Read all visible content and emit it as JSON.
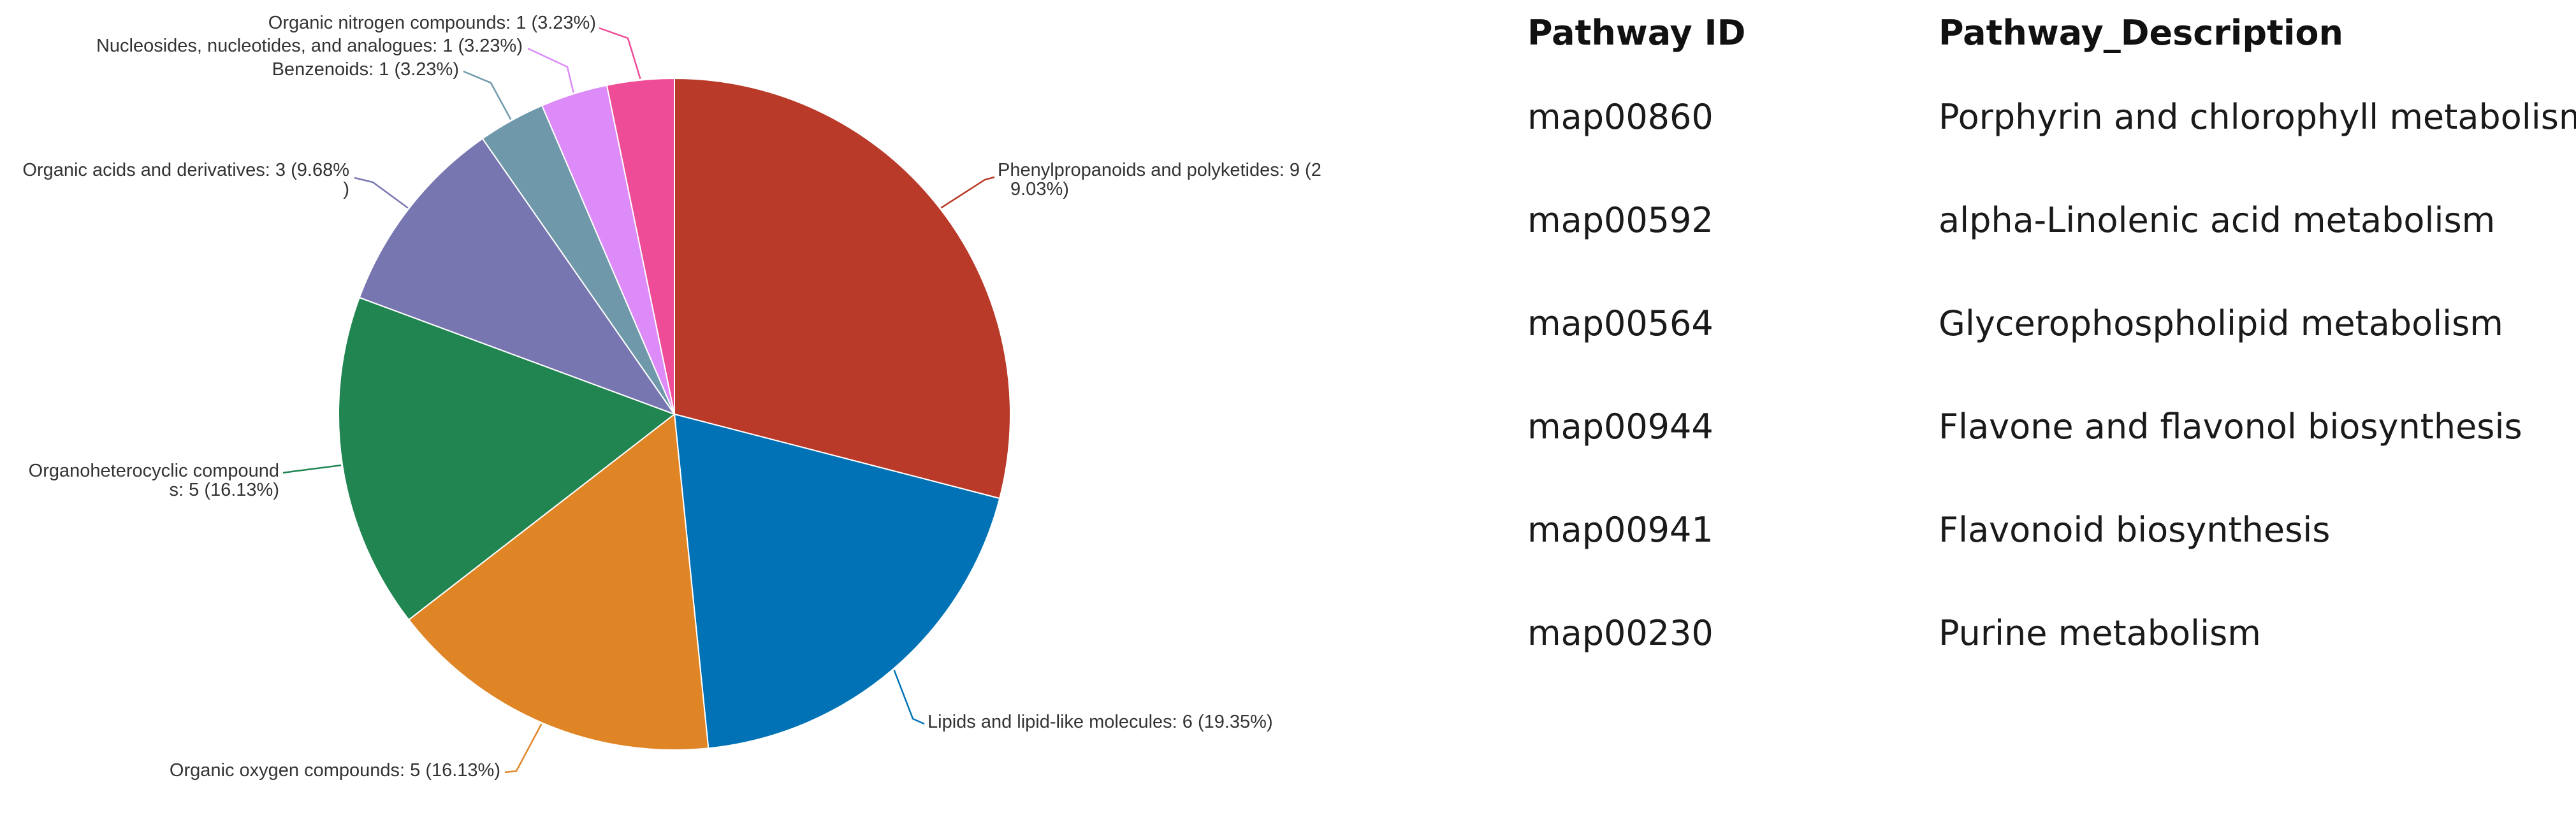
{
  "chart_data": {
    "type": "pie",
    "slices": [
      {
        "name": "Phenylpropanoids and polyketides",
        "value": 9,
        "label_lines": [
          "Phenylpropanoids and polyketides: 9 (2",
          "9.03%)"
        ],
        "color": "#b93a28"
      },
      {
        "name": "Lipids and lipid-like molecules",
        "value": 6,
        "label_lines": [
          "Lipids and lipid-like molecules: 6 (19.35%)"
        ],
        "color": "#0072b5"
      },
      {
        "name": "Organic oxygen compounds",
        "value": 5,
        "label_lines": [
          "Organic oxygen compounds: 5 (16.13%)"
        ],
        "color": "#e08526"
      },
      {
        "name": "Organoheterocyclic compounds",
        "value": 5,
        "label_lines": [
          "Organoheterocyclic compound",
          "s: 5 (16.13%)"
        ],
        "color": "#208550"
      },
      {
        "name": "Organic acids and derivatives",
        "value": 3,
        "label_lines": [
          "Organic acids and derivatives: 3 (9.68%",
          ")"
        ],
        "color": "#7876b1"
      },
      {
        "name": "Benzenoids",
        "value": 1,
        "label_lines": [
          "Benzenoids: 1 (3.23%)"
        ],
        "color": "#6f99ab"
      },
      {
        "name": "Nucleosides, nucleotides, and analogues",
        "value": 1,
        "label_lines": [
          "Nucleosides, nucleotides, and analogues: 1 (3.23%)"
        ],
        "color": "#dc8bf8"
      },
      {
        "name": "Organic nitrogen compounds",
        "value": 1,
        "label_lines": [
          "Organic nitrogen compounds: 1 (3.23%)"
        ],
        "color": "#ee4c97"
      }
    ],
    "start": "12 o'clock",
    "direction": "clockwise",
    "legend": "none",
    "title": ""
  },
  "table": {
    "headers": {
      "id": "Pathway ID",
      "description": "Pathway_Description"
    },
    "rows": [
      {
        "id": "map00860",
        "description": "Porphyrin and chlorophyll metabolism"
      },
      {
        "id": "map00592",
        "description": "alpha-Linolenic acid metabolism"
      },
      {
        "id": "map00564",
        "description": "Glycerophospholipid metabolism"
      },
      {
        "id": "map00944",
        "description": "Flavone and flavonol biosynthesis"
      },
      {
        "id": "map00941",
        "description": "Flavonoid biosynthesis"
      },
      {
        "id": "map00230",
        "description": "Purine metabolism"
      }
    ]
  }
}
